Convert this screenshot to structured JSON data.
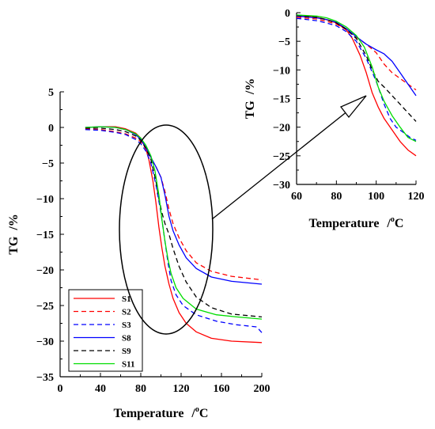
{
  "chart_data": [
    {
      "id": "main",
      "type": "line",
      "xlabel": "Temperature",
      "xunit_pre": "/",
      "xunit_sup": "o",
      "xunit_post": "C",
      "ylabel": "TG",
      "yunit": "/%",
      "xlim": [
        0,
        200
      ],
      "ylim": [
        -35,
        5
      ],
      "xticks": [
        0,
        40,
        80,
        120,
        160,
        200
      ],
      "yticks": [
        5,
        0,
        -5,
        -10,
        -15,
        -20,
        -25,
        -30,
        -35
      ],
      "grid": false,
      "legend_position": "bottom-left",
      "series": [
        {
          "name": "S1",
          "color": "#ff0000",
          "dash": "solid",
          "points": [
            [
              25,
              0
            ],
            [
              40,
              0.1
            ],
            [
              55,
              0.1
            ],
            [
              65,
              -0.2
            ],
            [
              75,
              -0.8
            ],
            [
              80,
              -1.5
            ],
            [
              85,
              -3
            ],
            [
              88,
              -4.5
            ],
            [
              92,
              -7.5
            ],
            [
              95,
              -10.5
            ],
            [
              98,
              -14
            ],
            [
              101,
              -17
            ],
            [
              104,
              -19.5
            ],
            [
              108,
              -22
            ],
            [
              112,
              -24
            ],
            [
              118,
              -26
            ],
            [
              125,
              -27.5
            ],
            [
              135,
              -28.7
            ],
            [
              150,
              -29.6
            ],
            [
              170,
              -30
            ],
            [
              200,
              -30.2
            ]
          ]
        },
        {
          "name": "S2",
          "color": "#ff0000",
          "dash": "dashed",
          "points": [
            [
              25,
              -0.2
            ],
            [
              40,
              -0.3
            ],
            [
              55,
              -0.6
            ],
            [
              65,
              -0.9
            ],
            [
              75,
              -1.5
            ],
            [
              80,
              -2
            ],
            [
              85,
              -3
            ],
            [
              90,
              -4.3
            ],
            [
              95,
              -5.5
            ],
            [
              100,
              -7
            ],
            [
              104,
              -9
            ],
            [
              108,
              -11.5
            ],
            [
              112,
              -13.5
            ],
            [
              118,
              -15.5
            ],
            [
              125,
              -17.3
            ],
            [
              135,
              -19
            ],
            [
              150,
              -20.2
            ],
            [
              170,
              -20.9
            ],
            [
              200,
              -21.4
            ]
          ]
        },
        {
          "name": "S3",
          "color": "#0000ff",
          "dash": "dashed",
          "points": [
            [
              25,
              -0.3
            ],
            [
              40,
              -0.4
            ],
            [
              55,
              -0.7
            ],
            [
              65,
              -1
            ],
            [
              75,
              -1.7
            ],
            [
              80,
              -2.3
            ],
            [
              85,
              -3.3
            ],
            [
              90,
              -5
            ],
            [
              95,
              -8
            ],
            [
              100,
              -12
            ],
            [
              104,
              -16
            ],
            [
              107,
              -19
            ],
            [
              110,
              -21.5
            ],
            [
              115,
              -23.5
            ],
            [
              122,
              -25
            ],
            [
              135,
              -26.3
            ],
            [
              155,
              -27.2
            ],
            [
              175,
              -27.7
            ],
            [
              195,
              -28
            ],
            [
              200,
              -28.8
            ]
          ]
        },
        {
          "name": "S8",
          "color": "#0000ff",
          "dash": "solid",
          "points": [
            [
              25,
              0
            ],
            [
              40,
              0.1
            ],
            [
              55,
              0
            ],
            [
              65,
              -0.3
            ],
            [
              75,
              -1
            ],
            [
              80,
              -1.7
            ],
            [
              85,
              -2.8
            ],
            [
              90,
              -4.2
            ],
            [
              95,
              -5.5
            ],
            [
              100,
              -7
            ],
            [
              104,
              -9.5
            ],
            [
              108,
              -12.5
            ],
            [
              112,
              -14.5
            ],
            [
              118,
              -16.5
            ],
            [
              125,
              -18.3
            ],
            [
              135,
              -19.8
            ],
            [
              150,
              -21
            ],
            [
              170,
              -21.6
            ],
            [
              200,
              -22
            ]
          ]
        },
        {
          "name": "S9",
          "color": "#000000",
          "dash": "dashed",
          "points": [
            [
              25,
              -0.1
            ],
            [
              40,
              -0.1
            ],
            [
              55,
              -0.3
            ],
            [
              65,
              -0.6
            ],
            [
              75,
              -1.2
            ],
            [
              80,
              -1.8
            ],
            [
              85,
              -2.9
            ],
            [
              90,
              -4.5
            ],
            [
              95,
              -7.5
            ],
            [
              98,
              -10
            ],
            [
              101,
              -12
            ],
            [
              104,
              -13.5
            ],
            [
              108,
              -15
            ],
            [
              112,
              -17
            ],
            [
              118,
              -19.5
            ],
            [
              125,
              -21.7
            ],
            [
              135,
              -23.8
            ],
            [
              150,
              -25.3
            ],
            [
              170,
              -26.2
            ],
            [
              200,
              -26.6
            ]
          ]
        },
        {
          "name": "S11",
          "color": "#00dd00",
          "dash": "solid",
          "points": [
            [
              25,
              0
            ],
            [
              40,
              0.1
            ],
            [
              55,
              0
            ],
            [
              65,
              -0.3
            ],
            [
              75,
              -0.9
            ],
            [
              80,
              -1.5
            ],
            [
              85,
              -2.5
            ],
            [
              90,
              -4
            ],
            [
              94,
              -6
            ],
            [
              98,
              -9.5
            ],
            [
              101,
              -13
            ],
            [
              104,
              -16
            ],
            [
              107,
              -18.5
            ],
            [
              110,
              -20.5
            ],
            [
              115,
              -22.5
            ],
            [
              122,
              -24
            ],
            [
              135,
              -25.5
            ],
            [
              155,
              -26.3
            ],
            [
              175,
              -26.6
            ],
            [
              200,
              -26.9
            ]
          ]
        }
      ]
    },
    {
      "id": "inset",
      "type": "line",
      "xlabel": "Temperature",
      "xunit_pre": "/",
      "xunit_sup": "o",
      "xunit_post": "C",
      "ylabel": "TG",
      "yunit": "/%",
      "xlim": [
        60,
        120
      ],
      "ylim": [
        -30,
        0
      ],
      "xticks": [
        60,
        80,
        100,
        120
      ],
      "yticks": [
        0,
        -5,
        -10,
        -15,
        -20,
        -25,
        -30
      ],
      "grid": false,
      "series": [
        {
          "name": "S1",
          "color": "#ff0000",
          "dash": "solid",
          "points": [
            [
              60,
              -0.5
            ],
            [
              70,
              -0.8
            ],
            [
              75,
              -1.2
            ],
            [
              80,
              -1.8
            ],
            [
              85,
              -3
            ],
            [
              88,
              -4.5
            ],
            [
              92,
              -7.5
            ],
            [
              95,
              -10.5
            ],
            [
              98,
              -14
            ],
            [
              101,
              -16.5
            ],
            [
              104,
              -18.5
            ],
            [
              108,
              -20.5
            ],
            [
              112,
              -22.5
            ],
            [
              116,
              -24
            ],
            [
              120,
              -25
            ]
          ]
        },
        {
          "name": "S2",
          "color": "#ff0000",
          "dash": "dashed",
          "points": [
            [
              60,
              -0.8
            ],
            [
              70,
              -1.1
            ],
            [
              75,
              -1.5
            ],
            [
              80,
              -2
            ],
            [
              85,
              -3
            ],
            [
              90,
              -4.3
            ],
            [
              95,
              -5.5
            ],
            [
              100,
              -7
            ],
            [
              104,
              -9
            ],
            [
              108,
              -10.5
            ],
            [
              112,
              -11.5
            ],
            [
              116,
              -12.5
            ],
            [
              120,
              -13.5
            ]
          ]
        },
        {
          "name": "S3",
          "color": "#0000ff",
          "dash": "dashed",
          "points": [
            [
              60,
              -1
            ],
            [
              70,
              -1.4
            ],
            [
              75,
              -1.8
            ],
            [
              80,
              -2.3
            ],
            [
              85,
              -3.3
            ],
            [
              90,
              -5
            ],
            [
              95,
              -8
            ],
            [
              100,
              -12
            ],
            [
              104,
              -16
            ],
            [
              107,
              -18.5
            ],
            [
              110,
              -20
            ],
            [
              114,
              -21
            ],
            [
              117,
              -21.8
            ],
            [
              120,
              -22.3
            ]
          ]
        },
        {
          "name": "S8",
          "color": "#0000ff",
          "dash": "solid",
          "points": [
            [
              60,
              -0.6
            ],
            [
              70,
              -0.9
            ],
            [
              75,
              -1.2
            ],
            [
              80,
              -1.7
            ],
            [
              85,
              -2.8
            ],
            [
              90,
              -4.2
            ],
            [
              95,
              -5.5
            ],
            [
              100,
              -6.5
            ],
            [
              104,
              -7.2
            ],
            [
              108,
              -8.5
            ],
            [
              112,
              -10.5
            ],
            [
              116,
              -12.5
            ],
            [
              120,
              -14.5
            ]
          ]
        },
        {
          "name": "S9",
          "color": "#000000",
          "dash": "dashed",
          "points": [
            [
              60,
              -0.5
            ],
            [
              70,
              -0.8
            ],
            [
              75,
              -1.2
            ],
            [
              80,
              -1.8
            ],
            [
              85,
              -2.9
            ],
            [
              90,
              -4.5
            ],
            [
              95,
              -7.5
            ],
            [
              98,
              -10
            ],
            [
              101,
              -12
            ],
            [
              104,
              -13
            ],
            [
              108,
              -14.5
            ],
            [
              112,
              -16
            ],
            [
              116,
              -17.5
            ],
            [
              120,
              -19
            ]
          ]
        },
        {
          "name": "S11",
          "color": "#00dd00",
          "dash": "solid",
          "points": [
            [
              60,
              -0.4
            ],
            [
              70,
              -0.6
            ],
            [
              75,
              -0.9
            ],
            [
              80,
              -1.5
            ],
            [
              85,
              -2.5
            ],
            [
              90,
              -4
            ],
            [
              94,
              -6
            ],
            [
              98,
              -9.5
            ],
            [
              101,
              -13
            ],
            [
              104,
              -15.5
            ],
            [
              108,
              -18
            ],
            [
              112,
              -20
            ],
            [
              116,
              -21.8
            ],
            [
              120,
              -22.5
            ]
          ]
        }
      ]
    }
  ]
}
